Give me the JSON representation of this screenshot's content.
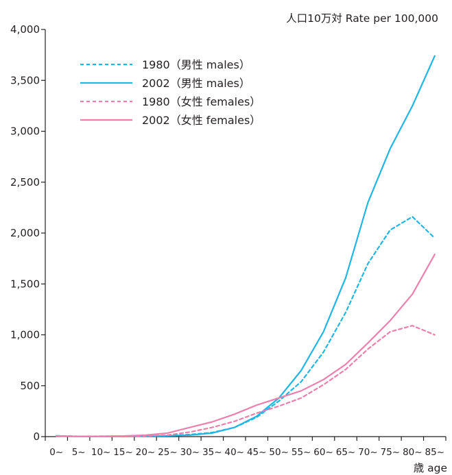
{
  "chart_data": {
    "type": "line",
    "title": "",
    "ylabel": "人口10万対  Rate per 100,000",
    "xlabel": "歳 age",
    "ylim": [
      0,
      4000
    ],
    "yticks": [
      0,
      500,
      1000,
      1500,
      2000,
      2500,
      3000,
      3500,
      4000
    ],
    "ytick_labels": [
      "0",
      "500",
      "1,000",
      "1,500",
      "2,000",
      "2,500",
      "3,000",
      "3,500",
      "4,000"
    ],
    "categories": [
      "0~",
      "5~",
      "10~",
      "15~",
      "20~",
      "25~",
      "30~",
      "35~",
      "40~",
      "45~",
      "50~",
      "55~",
      "60~",
      "65~",
      "70~",
      "75~",
      "80~",
      "85~"
    ],
    "grid": false,
    "legend_position": "top-left",
    "series": [
      {
        "name": "1980（男性 males）",
        "color": "#1fb6e6",
        "dash": true,
        "values": [
          8,
          3,
          3,
          4,
          6,
          10,
          20,
          40,
          90,
          190,
          350,
          540,
          830,
          1220,
          1700,
          2030,
          2160,
          1950
        ]
      },
      {
        "name": "2002（男性 males）",
        "color": "#1fb6e6",
        "dash": false,
        "values": [
          6,
          2,
          2,
          3,
          5,
          8,
          15,
          35,
          90,
          200,
          380,
          650,
          1030,
          1560,
          2300,
          2830,
          3250,
          3740
        ]
      },
      {
        "name": "1980（女性 females）",
        "color": "#ec7fab",
        "dash": true,
        "values": [
          7,
          3,
          4,
          5,
          8,
          15,
          45,
          90,
          150,
          230,
          300,
          380,
          510,
          660,
          860,
          1030,
          1090,
          1000
        ]
      },
      {
        "name": "2002（女性 females）",
        "color": "#ec7fab",
        "dash": false,
        "values": [
          5,
          2,
          3,
          6,
          15,
          35,
          90,
          145,
          220,
          310,
          380,
          450,
          560,
          710,
          920,
          1140,
          1400,
          1790
        ]
      }
    ]
  }
}
